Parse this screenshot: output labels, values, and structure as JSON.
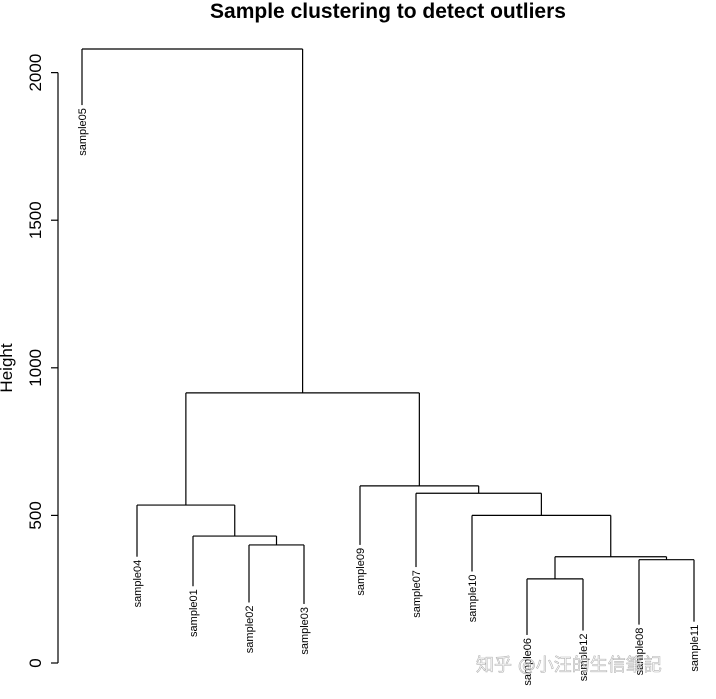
{
  "chart_data": {
    "type": "dendrogram",
    "title": "Sample clustering to detect outliers",
    "ylabel": "Height",
    "xlabel": "",
    "ylim": [
      0,
      2150
    ],
    "yticks": [
      0,
      500,
      1000,
      1500,
      2000
    ],
    "leaves": [
      {
        "label": "sample05",
        "height": 1890
      },
      {
        "label": "sample04",
        "height": 360
      },
      {
        "label": "sample01",
        "height": 260
      },
      {
        "label": "sample02",
        "height": 205
      },
      {
        "label": "sample03",
        "height": 200
      },
      {
        "label": "sample09",
        "height": 400
      },
      {
        "label": "sample07",
        "height": 325
      },
      {
        "label": "sample10",
        "height": 310
      },
      {
        "label": "sample06",
        "height": 95
      },
      {
        "label": "sample12",
        "height": 110
      },
      {
        "label": "sample08",
        "height": 130
      },
      {
        "label": "sample11",
        "height": 140
      }
    ],
    "merges": [
      {
        "left": "L9",
        "right": "L10",
        "height": 400
      },
      {
        "left": "L3",
        "right": "M1",
        "height": 430
      },
      {
        "left": "L1",
        "right": "M2",
        "height": 535
      },
      {
        "left": "L12",
        "right": "L11",
        "height": 285
      },
      {
        "left": "L8",
        "right": "M4",
        "height": 355
      },
      {
        "left": "M5",
        "right": "L12x",
        "height": 360
      },
      {
        "left": "L8x",
        "right": "M6",
        "height": 500
      },
      {
        "left": "L7",
        "right": "M7",
        "height": 575
      },
      {
        "left": "L6",
        "right": "M8",
        "height": 600
      },
      {
        "left": "M3",
        "right": "M9",
        "height": 915
      },
      {
        "left": "L0",
        "right": "M10",
        "height": 2080
      }
    ]
  },
  "watermark": {
    "text": "知乎 @小汪的生信筆記"
  }
}
